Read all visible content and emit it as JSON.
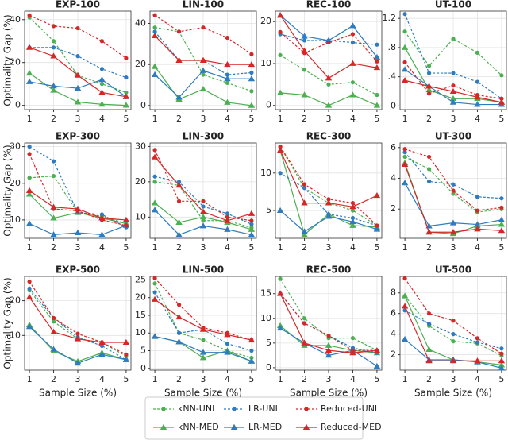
{
  "legend": [
    {
      "name": "kNN-UNI",
      "color": "#4caf50",
      "marker": "circle",
      "dashed": true
    },
    {
      "name": "kNN-MED",
      "color": "#4caf50",
      "marker": "triangle",
      "dashed": false
    },
    {
      "name": "LR-UNI",
      "color": "#2f7bbf",
      "marker": "circle",
      "dashed": true
    },
    {
      "name": "LR-MED",
      "color": "#2f7bbf",
      "marker": "triangle",
      "dashed": false
    },
    {
      "name": "Reduced-UNI",
      "color": "#d62728",
      "marker": "circle",
      "dashed": true
    },
    {
      "name": "Reduced-MED",
      "color": "#d62728",
      "marker": "triangle",
      "dashed": false
    }
  ],
  "chart_data": [
    {
      "type": "line",
      "title": "EXP-100",
      "y_label": "Optimality Gap (%)",
      "grid": true,
      "x": [
        1,
        2,
        3,
        4,
        5
      ],
      "xlim": [
        0.8,
        5.2
      ],
      "xticks": [
        1,
        2,
        3,
        4,
        5
      ],
      "ylim": [
        -2,
        44
      ],
      "yticks": [
        0,
        20,
        40
      ],
      "series": [
        {
          "values": [
            41,
            30,
            14,
            10,
            6
          ]
        },
        {
          "values": [
            15,
            7,
            1.5,
            0.5,
            0
          ]
        },
        {
          "values": [
            27,
            27,
            23,
            17,
            13
          ]
        },
        {
          "values": [
            11,
            9,
            8,
            12,
            4
          ]
        },
        {
          "values": [
            42,
            37,
            36,
            30,
            22
          ]
        },
        {
          "values": [
            27,
            23,
            14,
            6,
            4
          ]
        }
      ]
    },
    {
      "type": "line",
      "title": "LIN-100",
      "grid": true,
      "x": [
        1,
        2,
        3,
        4,
        5
      ],
      "xlim": [
        0.8,
        5.2
      ],
      "xticks": [
        1,
        2,
        3,
        4,
        5
      ],
      "ylim": [
        -2,
        46
      ],
      "yticks": [
        0,
        20,
        40
      ],
      "series": [
        {
          "values": [
            38,
            36,
            15,
            11,
            7
          ]
        },
        {
          "values": [
            19,
            3,
            8,
            1.5,
            0
          ]
        },
        {
          "values": [
            36,
            22,
            22,
            15,
            16
          ]
        },
        {
          "values": [
            15,
            4,
            17,
            13,
            13
          ]
        },
        {
          "values": [
            44,
            36,
            38,
            33,
            25
          ]
        },
        {
          "values": [
            34,
            22,
            22,
            20,
            20
          ]
        }
      ]
    },
    {
      "type": "line",
      "title": "REC-100",
      "grid": true,
      "x": [
        1,
        2,
        3,
        4,
        5
      ],
      "xlim": [
        0.8,
        5.2
      ],
      "xticks": [
        1,
        2,
        3,
        4,
        5
      ],
      "ylim": [
        -1,
        22.5
      ],
      "yticks": [
        0,
        10,
        20
      ],
      "series": [
        {
          "values": [
            12,
            8.5,
            5,
            5.5,
            2.5
          ]
        },
        {
          "values": [
            3,
            2.5,
            0,
            2.5,
            0
          ]
        },
        {
          "values": [
            17,
            15.5,
            15.5,
            15,
            14.5
          ]
        },
        {
          "values": [
            21.5,
            16.5,
            15.5,
            19,
            11.5
          ]
        },
        {
          "values": [
            17.5,
            12.5,
            15,
            17,
            10.5
          ]
        },
        {
          "values": [
            21.5,
            13,
            6.5,
            10,
            9
          ]
        }
      ]
    },
    {
      "type": "line",
      "title": "UT-100",
      "grid": true,
      "x": [
        1,
        2,
        3,
        4,
        5
      ],
      "xlim": [
        0.8,
        5.2
      ],
      "xticks": [
        1,
        2,
        3,
        4,
        5
      ],
      "ylim": [
        -0.05,
        1.3
      ],
      "yticks": [
        0,
        {
          "value": 0.4,
          "label": ".4"
        },
        {
          "value": 0.8,
          "label": ".8"
        },
        1.2
      ],
      "series": [
        {
          "values": [
            1.02,
            0.55,
            0.92,
            0.73,
            0.42
          ]
        },
        {
          "values": [
            0.8,
            0.22,
            0.1,
            0.1,
            0.05
          ]
        },
        {
          "values": [
            1.26,
            0.45,
            0.45,
            0.33,
            0.1
          ]
        },
        {
          "values": [
            0.5,
            0.27,
            0.05,
            0.02,
            0.02
          ]
        },
        {
          "values": [
            0.6,
            0.17,
            0.28,
            0.15,
            0.1
          ]
        },
        {
          "values": [
            0.35,
            0.27,
            0.2,
            0.12,
            0.05
          ]
        }
      ]
    },
    {
      "type": "line",
      "title": "EXP-300",
      "y_label": "Optimality Gap (%)",
      "grid": true,
      "x": [
        1,
        2,
        3,
        4,
        5
      ],
      "xlim": [
        0.8,
        5.2
      ],
      "xticks": [
        1,
        2,
        3,
        4,
        5
      ],
      "ylim": [
        5,
        31
      ],
      "yticks": [
        10,
        20,
        30
      ],
      "series": [
        {
          "values": [
            21.5,
            22,
            12,
            11,
            9
          ]
        },
        {
          "values": [
            17,
            10.5,
            12,
            10.5,
            9
          ]
        },
        {
          "values": [
            30,
            26,
            12,
            11.5,
            8
          ]
        },
        {
          "values": [
            9,
            6,
            6.5,
            6,
            8.5
          ]
        },
        {
          "values": [
            28,
            13,
            12.5,
            10,
            8.5
          ]
        },
        {
          "values": [
            18,
            13.5,
            13,
            10.5,
            10
          ]
        }
      ]
    },
    {
      "type": "line",
      "title": "LIN-300",
      "grid": true,
      "x": [
        1,
        2,
        3,
        4,
        5
      ],
      "xlim": [
        0.8,
        5.2
      ],
      "xticks": [
        1,
        2,
        3,
        4,
        5
      ],
      "ylim": [
        4,
        31
      ],
      "yticks": [
        10,
        20,
        30
      ],
      "series": [
        {
          "values": [
            20,
            19,
            9,
            9,
            7
          ]
        },
        {
          "values": [
            14,
            8.5,
            10,
            8.5,
            6.5
          ]
        },
        {
          "values": [
            21.5,
            20,
            13,
            11,
            8
          ]
        },
        {
          "values": [
            12,
            5,
            7.5,
            6.5,
            5
          ]
        },
        {
          "values": [
            29,
            14.5,
            14.5,
            10,
            9
          ]
        },
        {
          "values": [
            27,
            19,
            11.5,
            9,
            11
          ]
        }
      ]
    },
    {
      "type": "line",
      "title": "REC-300",
      "grid": true,
      "x": [
        1,
        2,
        3,
        4,
        5
      ],
      "xlim": [
        0.8,
        5.2
      ],
      "xticks": [
        1,
        2,
        3,
        4,
        5
      ],
      "ylim": [
        1.3,
        14
      ],
      "yticks": [
        5,
        10
      ],
      "series": [
        {
          "values": [
            13.5,
            8,
            6,
            5,
            3
          ]
        },
        {
          "values": [
            13,
            1.8,
            4.5,
            3,
            2.8
          ]
        },
        {
          "values": [
            10,
            8,
            4.5,
            4,
            3
          ]
        },
        {
          "values": [
            5,
            2.2,
            4.2,
            3.5,
            2.5
          ]
        },
        {
          "values": [
            13.5,
            8.5,
            6.5,
            6,
            3
          ]
        },
        {
          "values": [
            13,
            6,
            6,
            5.5,
            7
          ]
        }
      ]
    },
    {
      "type": "line",
      "title": "UT-300",
      "grid": true,
      "x": [
        1,
        2,
        3,
        4,
        5
      ],
      "xlim": [
        0.8,
        5.2
      ],
      "xticks": [
        1,
        2,
        3,
        4,
        5
      ],
      "ylim": [
        0.1,
        6.3
      ],
      "yticks": [
        2,
        4,
        6
      ],
      "series": [
        {
          "values": [
            5.4,
            4.6,
            3,
            1.8,
            2
          ]
        },
        {
          "values": [
            5,
            0.5,
            0.4,
            0.9,
            1.0
          ]
        },
        {
          "values": [
            5.7,
            3.8,
            3.6,
            2.8,
            2.7
          ]
        },
        {
          "values": [
            3.7,
            0.9,
            1.1,
            1.0,
            1.3
          ]
        },
        {
          "values": [
            5.9,
            5.4,
            3.2,
            1.9,
            2.1
          ]
        },
        {
          "values": [
            4.9,
            0.5,
            0.5,
            0.7,
            0.6
          ]
        }
      ]
    },
    {
      "type": "line",
      "title": "EXP-500",
      "y_label": "Optimality Gap (%)",
      "x_label": "Sample Size (%)",
      "grid": true,
      "x": [
        1,
        2,
        3,
        4,
        5
      ],
      "xlim": [
        0.8,
        5.2
      ],
      "xticks": [
        1,
        2,
        3,
        4,
        5
      ],
      "ylim": [
        0,
        27
      ],
      "yticks": [
        10,
        20
      ],
      "series": [
        {
          "values": [
            23,
            14,
            9,
            8,
            4
          ]
        },
        {
          "values": [
            13,
            5.5,
            2.5,
            5,
            3
          ]
        },
        {
          "values": [
            23.5,
            15,
            9.5,
            7,
            3
          ]
        },
        {
          "values": [
            12.5,
            6,
            2,
            4.5,
            3
          ]
        },
        {
          "values": [
            25.5,
            15,
            10.5,
            8,
            4.5
          ]
        },
        {
          "values": [
            21,
            11,
            9,
            8,
            8
          ]
        }
      ]
    },
    {
      "type": "line",
      "title": "LIN-500",
      "x_label": "Sample Size (%)",
      "grid": true,
      "x": [
        1,
        2,
        3,
        4,
        5
      ],
      "xlim": [
        0.8,
        5.2
      ],
      "xticks": [
        1,
        2,
        3,
        4,
        5
      ],
      "ylim": [
        -0.5,
        26
      ],
      "yticks": [
        0,
        5,
        10,
        15,
        20,
        25
      ],
      "series": [
        {
          "values": [
            24,
            10,
            8,
            5,
            3
          ]
        },
        {
          "values": [
            9,
            7.5,
            3,
            5,
            2
          ]
        },
        {
          "values": [
            21.5,
            10,
            11,
            7,
            5
          ]
        },
        {
          "values": [
            9,
            7.5,
            4.5,
            4.5,
            2
          ]
        },
        {
          "values": [
            25.5,
            18,
            11.5,
            10,
            8
          ]
        },
        {
          "values": [
            19.5,
            14.5,
            11,
            9.5,
            8
          ]
        }
      ]
    },
    {
      "type": "line",
      "title": "REC-500",
      "x_label": "Sample Size (%)",
      "grid": true,
      "x": [
        1,
        2,
        3,
        4,
        5
      ],
      "xlim": [
        0.8,
        5.2
      ],
      "xticks": [
        1,
        2,
        3,
        4,
        5
      ],
      "ylim": [
        -0.5,
        18.5
      ],
      "yticks": [
        0,
        5,
        10,
        15
      ],
      "series": [
        {
          "values": [
            18,
            10,
            6,
            6,
            3.5
          ]
        },
        {
          "values": [
            8.5,
            4.5,
            4.5,
            3.5,
            3
          ]
        },
        {
          "values": [
            15,
            9,
            6.5,
            4,
            3
          ]
        },
        {
          "values": [
            8,
            5,
            2.5,
            3.5,
            0.3
          ]
        },
        {
          "values": [
            15,
            9,
            6.5,
            3.5,
            3.5
          ]
        },
        {
          "values": [
            15,
            5,
            3.5,
            3,
            3.5
          ]
        }
      ]
    },
    {
      "type": "line",
      "title": "UT-500",
      "x_label": "Sample Size (%)",
      "grid": true,
      "x": [
        1,
        2,
        3,
        4,
        5
      ],
      "xlim": [
        0.8,
        5.2
      ],
      "xticks": [
        1,
        2,
        3,
        4,
        5
      ],
      "ylim": [
        0.5,
        9.6
      ],
      "yticks": [
        2,
        4,
        6,
        8
      ],
      "series": [
        {
          "values": [
            7.7,
            4.8,
            3.3,
            3.1,
            1.9
          ]
        },
        {
          "values": [
            7.7,
            2.5,
            1.5,
            1.3,
            1.0
          ]
        },
        {
          "values": [
            6.3,
            5.0,
            4.0,
            3.2,
            2.6
          ]
        },
        {
          "values": [
            3.5,
            1.5,
            1.5,
            1.3,
            0.7
          ]
        },
        {
          "values": [
            9.4,
            6.0,
            5.3,
            3.6,
            2.1
          ]
        },
        {
          "values": [
            6.7,
            1.4,
            1.4,
            1.4,
            1.4
          ]
        }
      ]
    }
  ]
}
